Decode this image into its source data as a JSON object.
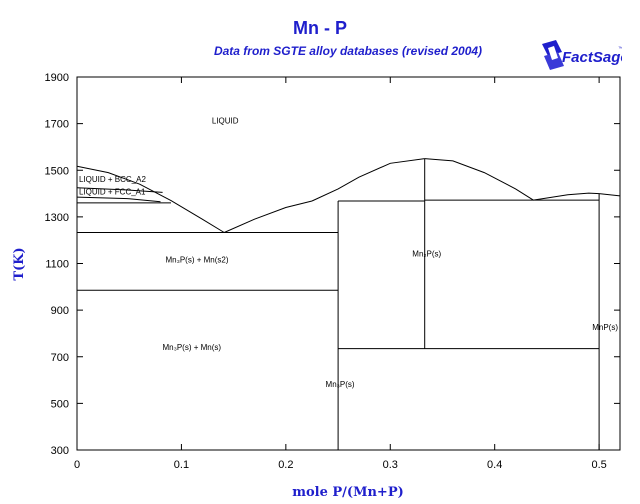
{
  "chart_data": {
    "type": "phase-diagram",
    "title": "Mn - P",
    "subtitle": "Data from SGTE alloy databases (revised 2004)",
    "xlabel": "mole P/(Mn+P)",
    "ylabel": "T(K)",
    "xlim": [
      0,
      0.52
    ],
    "ylim": [
      300,
      1900
    ],
    "x_ticks": [
      "0",
      "0.1",
      "0.2",
      "0.3",
      "0.4",
      "0.5"
    ],
    "y_ticks": [
      "300",
      "500",
      "700",
      "900",
      "1100",
      "1300",
      "1500",
      "1700",
      "1900"
    ],
    "x_tick_values": [
      0,
      0.1,
      0.2,
      0.3,
      0.4,
      0.5
    ],
    "y_tick_values": [
      300,
      500,
      700,
      900,
      1100,
      1300,
      1500,
      1700,
      1900
    ],
    "grid": false,
    "lines": [
      {
        "name": "liquidus-mn-rich",
        "points": [
          [
            0,
            1517
          ],
          [
            0.03,
            1490
          ],
          [
            0.06,
            1440
          ],
          [
            0.09,
            1370
          ],
          [
            0.12,
            1290
          ],
          [
            0.141,
            1233
          ]
        ]
      },
      {
        "name": "liquidus-mn3p",
        "points": [
          [
            0.141,
            1233
          ],
          [
            0.17,
            1290
          ],
          [
            0.2,
            1340
          ],
          [
            0.225,
            1368
          ]
        ]
      },
      {
        "name": "liquidus-mn2p-left",
        "points": [
          [
            0.225,
            1368
          ],
          [
            0.25,
            1420
          ],
          [
            0.27,
            1470
          ],
          [
            0.3,
            1530
          ],
          [
            0.333,
            1550
          ]
        ]
      },
      {
        "name": "liquidus-mn2p-right",
        "points": [
          [
            0.333,
            1550
          ],
          [
            0.36,
            1540
          ],
          [
            0.39,
            1490
          ],
          [
            0.42,
            1420
          ],
          [
            0.437,
            1372
          ]
        ]
      },
      {
        "name": "liquidus-mnp",
        "points": [
          [
            0.437,
            1372
          ],
          [
            0.47,
            1395
          ],
          [
            0.49,
            1402
          ],
          [
            0.5,
            1400
          ],
          [
            0.52,
            1390
          ]
        ]
      },
      {
        "name": "bcc-solvus",
        "points": [
          [
            0,
            1425
          ],
          [
            0.05,
            1415
          ],
          [
            0.082,
            1405
          ]
        ]
      },
      {
        "name": "fcc-solvus",
        "points": [
          [
            0,
            1385
          ],
          [
            0.05,
            1378
          ],
          [
            0.08,
            1365
          ]
        ]
      },
      {
        "name": "bcc-fcc-line",
        "points": [
          [
            0,
            1360
          ],
          [
            0.09,
            1360
          ]
        ]
      },
      {
        "name": "eutectic-mn-mn3p",
        "points": [
          [
            0,
            1233
          ],
          [
            0.25,
            1233
          ]
        ]
      },
      {
        "name": "mn-transition",
        "points": [
          [
            0,
            985
          ],
          [
            0.25,
            985
          ]
        ]
      },
      {
        "name": "mn3p-line",
        "points": [
          [
            0.25,
            300
          ],
          [
            0.25,
            1368
          ]
        ]
      },
      {
        "name": "peritectic-mn3p",
        "points": [
          [
            0.25,
            1368
          ],
          [
            0.333,
            1368
          ]
        ]
      },
      {
        "name": "eutectic-mn2p-mnp",
        "points": [
          [
            0.333,
            1372
          ],
          [
            0.5,
            1372
          ]
        ]
      },
      {
        "name": "mn2p-line",
        "points": [
          [
            0.333,
            735
          ],
          [
            0.333,
            1550
          ]
        ]
      },
      {
        "name": "mn2p-mnp-low",
        "points": [
          [
            0.25,
            735
          ],
          [
            0.5,
            735
          ]
        ]
      },
      {
        "name": "mnp-line",
        "points": [
          [
            0.5,
            300
          ],
          [
            0.5,
            1400
          ]
        ]
      }
    ],
    "regions": [
      {
        "text": "LIQUID",
        "x": 0.14,
        "y": 1700
      },
      {
        "text": "LIQUID + BCC_A2",
        "x": 0.0,
        "y": 1450
      },
      {
        "text": "LIQUID + FCC_A1",
        "x": 0.0,
        "y": 1397
      },
      {
        "text": "Mn₃P(s) + Mn(s2)",
        "x": 0.113,
        "y": 1105
      },
      {
        "text": "Mn₃P(s) + Mn(s)",
        "x": 0.108,
        "y": 730
      },
      {
        "text": "Mn₂P(s)",
        "x": 0.333,
        "y": 1130
      },
      {
        "text": "Mn₃P(s)",
        "x": 0.25,
        "y": 570
      },
      {
        "text": "MnP(s)",
        "x": 0.5,
        "y": 815
      }
    ]
  },
  "logo": {
    "text": "FactSage",
    "brand_color": "#1f1fcc"
  }
}
